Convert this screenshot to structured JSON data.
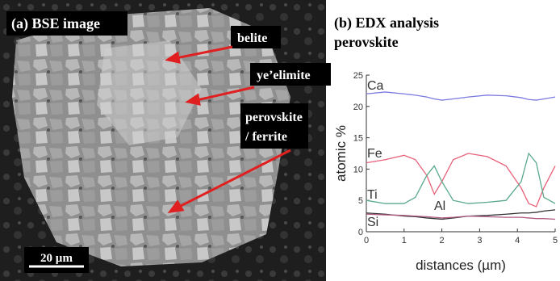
{
  "image_panel": {
    "title": "(a) BSE image",
    "labels": [
      "belite",
      "ye’elimite",
      "perovskite",
      "/ ferrite"
    ],
    "scale_bar": "20 µm"
  },
  "chart_data": {
    "type": "line",
    "title": "(b) EDX analysis",
    "subtitle": "perovskite",
    "x_label": "distances (µm)",
    "y_label": "atomic %",
    "x": [
      0,
      0.5,
      1,
      1.3,
      1.6,
      1.8,
      2,
      2.3,
      2.7,
      3.2,
      3.7,
      4.1,
      4.3,
      4.5,
      4.7,
      5
    ],
    "series": [
      {
        "name": "Ca",
        "color": "#7a7ae0",
        "values": [
          22,
          22.3,
          22,
          21.8,
          21.5,
          21.2,
          21,
          21.2,
          21.5,
          21.8,
          21.7,
          21.4,
          21.1,
          21,
          21.2,
          21.5
        ]
      },
      {
        "name": "Fe",
        "color": "#e8607a",
        "values": [
          11,
          11.5,
          12.2,
          11.5,
          9,
          6,
          8,
          11.5,
          12.5,
          12,
          10.5,
          7,
          4.5,
          4,
          7,
          10.5
        ]
      },
      {
        "name": "Ti",
        "color": "#5aa98a",
        "values": [
          5,
          4.5,
          4.5,
          5.5,
          9,
          10.5,
          8,
          5,
          4.5,
          4.7,
          5,
          8,
          12.5,
          11,
          5.5,
          4.5
        ]
      },
      {
        "name": "Al",
        "color": "#333333",
        "values": [
          3,
          2.8,
          2.5,
          2.4,
          2.2,
          2.1,
          2,
          2.2,
          2.5,
          2.6,
          2.8,
          3,
          3,
          3.1,
          3.3,
          3.5
        ]
      },
      {
        "name": "Si",
        "color": "#b05a80",
        "values": [
          2.8,
          2.7,
          2.6,
          2.5,
          2.4,
          2.3,
          2.2,
          2.3,
          2.5,
          2.4,
          2.3,
          2.3,
          2.2,
          2.1,
          2.1,
          2
        ]
      }
    ],
    "xlim": [
      0,
      5
    ],
    "xticks": [
      0,
      1,
      2,
      3,
      4,
      5
    ],
    "ylim": [
      0,
      25
    ],
    "yticks": [
      0,
      5,
      10,
      15,
      20,
      25
    ]
  }
}
